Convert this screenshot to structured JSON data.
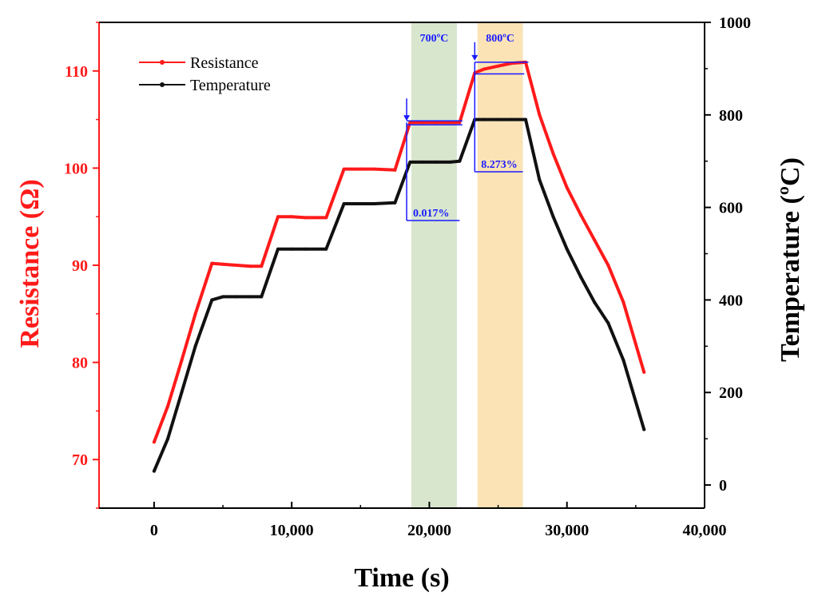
{
  "chart_data": {
    "type": "line",
    "xlabel": "Time (s)",
    "ylabel_left": "Resistance (Ω)",
    "ylabel_right": "Temperature (ºC)",
    "xlim": [
      -4000,
      40000
    ],
    "ylim_left": [
      65,
      115
    ],
    "ylim_right": [
      -50,
      1000
    ],
    "x_ticks": [
      0,
      10000,
      20000,
      30000,
      40000
    ],
    "x_tick_labels": [
      "0",
      "10,000",
      "20,000",
      "30,000",
      "40,000"
    ],
    "y_left_ticks": [
      70,
      80,
      90,
      100,
      110
    ],
    "y_right_ticks": [
      0,
      200,
      400,
      600,
      800,
      1000
    ],
    "grid": false,
    "legend_position": "top-left",
    "colors": {
      "resistance": "#ff1a1a",
      "temperature": "#111111",
      "left_axis": "#ff1a1a",
      "band_700": "#d7e6cd",
      "band_800": "#fbe3b6",
      "annotation": "#1a1aff"
    },
    "series": [
      {
        "name": "Resistance",
        "axis": "left",
        "x": [
          0,
          1000,
          2000,
          3000,
          4200,
          5000,
          6000,
          7000,
          7800,
          9000,
          10000,
          11000,
          12500,
          13800,
          15000,
          16000,
          17500,
          18600,
          19500,
          20500,
          21500,
          22200,
          23300,
          24000,
          25000,
          26000,
          27000,
          28000,
          29000,
          30000,
          31000,
          32000,
          33000,
          34100,
          35600
        ],
        "values": [
          71.8,
          75.5,
          80.2,
          85.0,
          90.2,
          90.1,
          90.0,
          89.9,
          89.9,
          95.0,
          95.0,
          94.9,
          94.9,
          99.9,
          99.9,
          99.9,
          99.8,
          104.7,
          104.7,
          104.7,
          104.7,
          104.7,
          109.8,
          110.2,
          110.5,
          110.8,
          110.9,
          105.5,
          101.5,
          98.0,
          95.2,
          92.6,
          90.0,
          86.2,
          79.0
        ]
      },
      {
        "name": "Temperature",
        "axis": "right",
        "x": [
          0,
          1000,
          2000,
          3000,
          4200,
          5000,
          6000,
          7000,
          7800,
          9000,
          10000,
          11000,
          12500,
          13800,
          15000,
          16000,
          17500,
          18600,
          19500,
          20500,
          21500,
          22200,
          23300,
          24000,
          25000,
          26000,
          27000,
          28000,
          29000,
          30000,
          31000,
          32000,
          33000,
          34100,
          35600
        ],
        "values": [
          30,
          100,
          200,
          300,
          400,
          407,
          407,
          407,
          407,
          510,
          510,
          510,
          510,
          608,
          608,
          608,
          610,
          698,
          698,
          698,
          698,
          700,
          790,
          790,
          790,
          790,
          790,
          660,
          580,
          510,
          450,
          395,
          350,
          270,
          120
        ]
      }
    ],
    "bands": [
      {
        "label": "700ºC",
        "x_start": 18700,
        "x_end": 22000
      },
      {
        "label": "800ºC",
        "x_start": 23500,
        "x_end": 26800
      }
    ],
    "annotations": [
      {
        "text": "0.017%",
        "x_ref": 18700,
        "y_left_ref": 104.7
      },
      {
        "text": "8.273%",
        "x_ref": 23300,
        "y_left_ref": 110.9
      }
    ]
  }
}
